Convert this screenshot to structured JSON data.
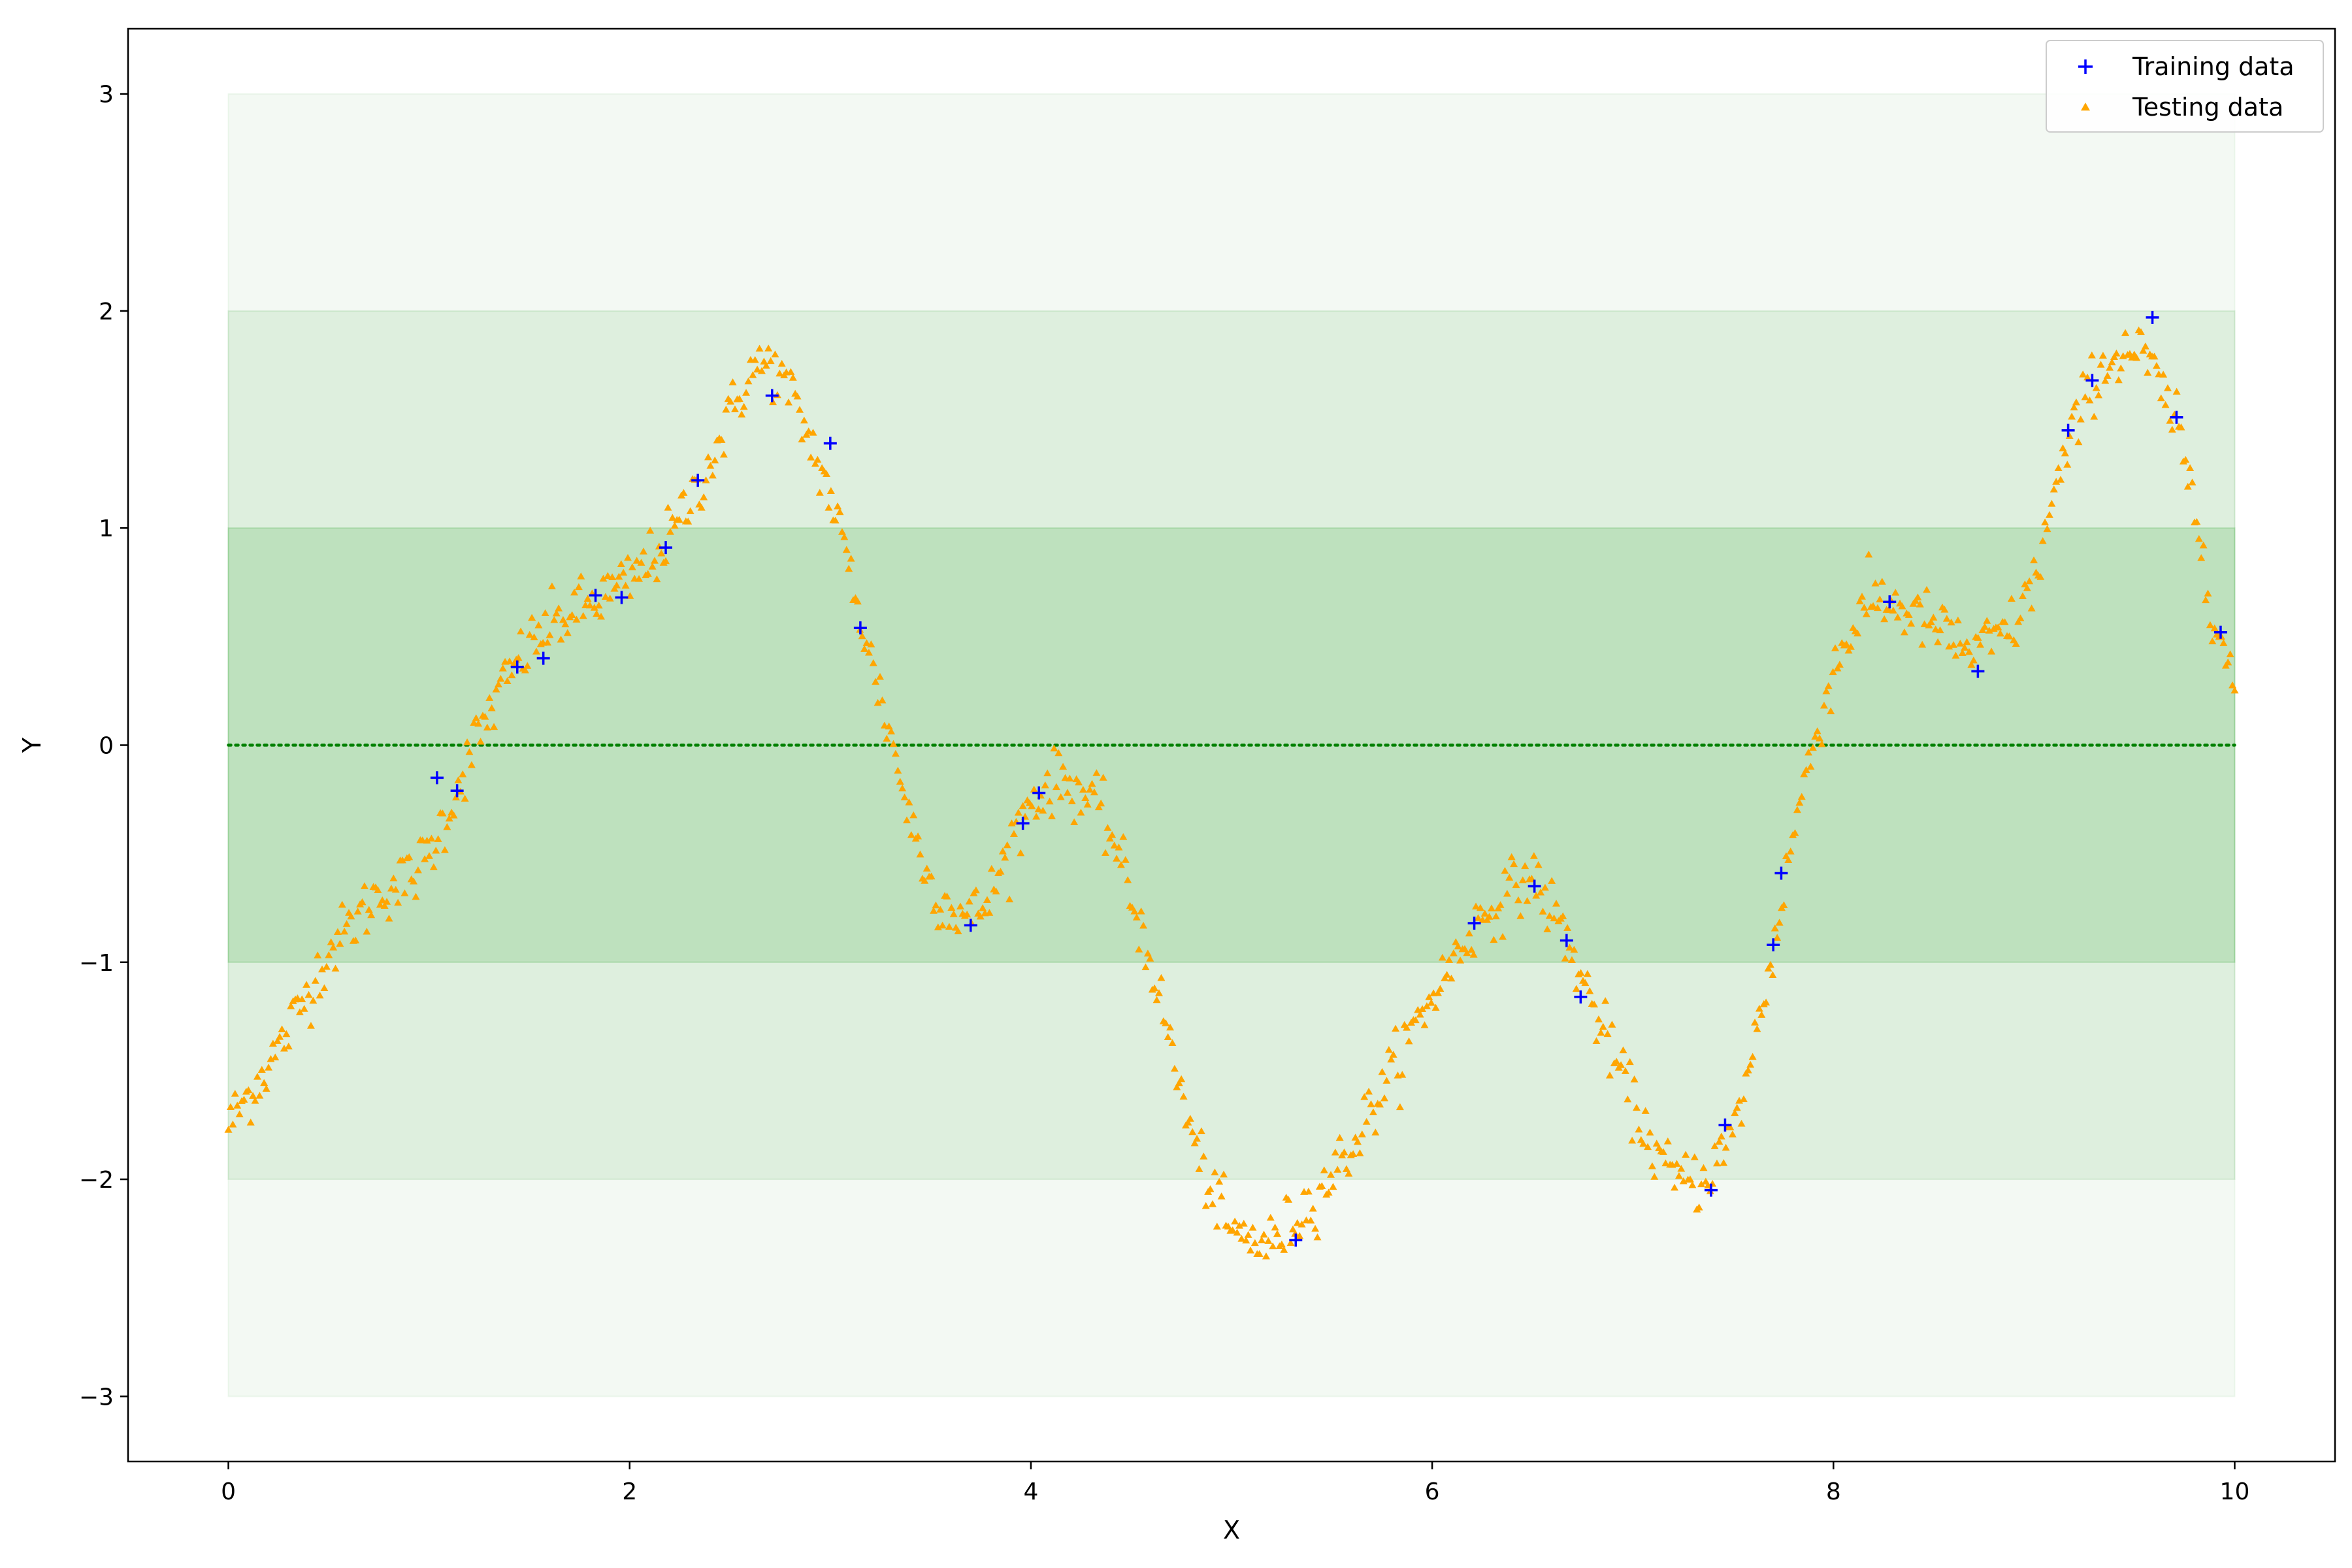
{
  "chart_data": {
    "type": "scatter",
    "xlabel": "X",
    "ylabel": "Y",
    "xlim": [
      -0.5,
      10.5
    ],
    "ylim": [
      -3.3,
      3.3
    ],
    "xticks": [
      0,
      2,
      4,
      6,
      8,
      10
    ],
    "yticks": [
      -3,
      -2,
      -1,
      0,
      1,
      2,
      3
    ],
    "xtick_labels": [
      "0",
      "2",
      "4",
      "6",
      "8",
      "10"
    ],
    "ytick_labels": [
      "−3",
      "−2",
      "−1",
      "0",
      "1",
      "2",
      "3"
    ],
    "grid": false,
    "legend": {
      "position": "top-right"
    },
    "mean_line": {
      "y": 0,
      "x_range": [
        0,
        10
      ],
      "style": "dotted",
      "color": "#008000"
    },
    "confidence_bands": [
      {
        "sigma": 3,
        "lower": -3,
        "upper": 3,
        "x_range": [
          0,
          10
        ],
        "color": "#2ca02c",
        "opacity": 0.06
      },
      {
        "sigma": 2,
        "lower": -2,
        "upper": 2,
        "x_range": [
          0,
          10
        ],
        "color": "#2ca02c",
        "opacity": 0.1
      },
      {
        "sigma": 1,
        "lower": -1,
        "upper": 1,
        "x_range": [
          0,
          10
        ],
        "color": "#2ca02c",
        "opacity": 0.18
      }
    ],
    "series": [
      {
        "name": "Training data",
        "marker": "plus",
        "color": "#0000ff",
        "points": [
          [
            1.04,
            -0.15
          ],
          [
            1.14,
            -0.21
          ],
          [
            1.44,
            0.36
          ],
          [
            1.57,
            0.4
          ],
          [
            1.83,
            0.69
          ],
          [
            1.96,
            0.68
          ],
          [
            2.18,
            0.91
          ],
          [
            2.34,
            1.22
          ],
          [
            2.71,
            1.61
          ],
          [
            3.0,
            1.39
          ],
          [
            3.15,
            0.54
          ],
          [
            3.7,
            -0.83
          ],
          [
            3.96,
            -0.36
          ],
          [
            4.04,
            -0.22
          ],
          [
            5.32,
            -2.28
          ],
          [
            6.21,
            -0.82
          ],
          [
            6.51,
            -0.65
          ],
          [
            6.67,
            -0.9
          ],
          [
            6.74,
            -1.16
          ],
          [
            7.39,
            -2.05
          ],
          [
            7.46,
            -1.75
          ],
          [
            7.7,
            -0.92
          ],
          [
            7.74,
            -0.59
          ],
          [
            8.28,
            0.66
          ],
          [
            8.72,
            0.34
          ],
          [
            9.17,
            1.45
          ],
          [
            9.29,
            1.68
          ],
          [
            9.59,
            1.97
          ],
          [
            9.71,
            1.51
          ],
          [
            9.93,
            0.52
          ]
        ]
      },
      {
        "name": "Testing data",
        "marker": "triangle",
        "color": "#ffa500",
        "curve": [
          [
            0.0,
            -1.75
          ],
          [
            0.25,
            -1.4
          ],
          [
            0.5,
            -0.95
          ],
          [
            0.75,
            -0.68
          ],
          [
            0.9,
            -0.62
          ],
          [
            1.0,
            -0.5
          ],
          [
            1.1,
            -0.3
          ],
          [
            1.2,
            -0.05
          ],
          [
            1.3,
            0.15
          ],
          [
            1.45,
            0.4
          ],
          [
            1.6,
            0.55
          ],
          [
            1.8,
            0.65
          ],
          [
            2.0,
            0.75
          ],
          [
            2.2,
            0.95
          ],
          [
            2.4,
            1.3
          ],
          [
            2.6,
            1.72
          ],
          [
            2.7,
            1.76
          ],
          [
            2.8,
            1.62
          ],
          [
            2.9,
            1.4
          ],
          [
            3.0,
            1.15
          ],
          [
            3.1,
            0.8
          ],
          [
            3.2,
            0.4
          ],
          [
            3.3,
            0.05
          ],
          [
            3.4,
            -0.35
          ],
          [
            3.5,
            -0.65
          ],
          [
            3.6,
            -0.75
          ],
          [
            3.7,
            -0.8
          ],
          [
            3.8,
            -0.7
          ],
          [
            3.9,
            -0.45
          ],
          [
            4.0,
            -0.25
          ],
          [
            4.15,
            -0.15
          ],
          [
            4.3,
            -0.25
          ],
          [
            4.4,
            -0.4
          ],
          [
            4.5,
            -0.7
          ],
          [
            4.6,
            -1.0
          ],
          [
            4.7,
            -1.4
          ],
          [
            4.8,
            -1.8
          ],
          [
            4.9,
            -2.05
          ],
          [
            5.0,
            -2.25
          ],
          [
            5.2,
            -2.3
          ],
          [
            5.4,
            -2.1
          ],
          [
            5.6,
            -1.85
          ],
          [
            5.8,
            -1.5
          ],
          [
            6.0,
            -1.15
          ],
          [
            6.2,
            -0.85
          ],
          [
            6.35,
            -0.7
          ],
          [
            6.5,
            -0.6
          ],
          [
            6.65,
            -0.85
          ],
          [
            6.8,
            -1.2
          ],
          [
            7.0,
            -1.65
          ],
          [
            7.1,
            -1.85
          ],
          [
            7.2,
            -2.0
          ],
          [
            7.35,
            -2.0
          ],
          [
            7.5,
            -1.8
          ],
          [
            7.6,
            -1.4
          ],
          [
            7.7,
            -0.95
          ],
          [
            7.8,
            -0.4
          ],
          [
            7.9,
            0.0
          ],
          [
            8.0,
            0.35
          ],
          [
            8.1,
            0.55
          ],
          [
            8.2,
            0.68
          ],
          [
            8.3,
            0.65
          ],
          [
            8.5,
            0.55
          ],
          [
            8.7,
            0.42
          ],
          [
            8.9,
            0.55
          ],
          [
            9.0,
            0.75
          ],
          [
            9.1,
            1.15
          ],
          [
            9.2,
            1.45
          ],
          [
            9.3,
            1.7
          ],
          [
            9.45,
            1.82
          ],
          [
            9.55,
            1.8
          ],
          [
            9.7,
            1.5
          ],
          [
            9.8,
            1.1
          ],
          [
            9.9,
            0.6
          ],
          [
            10.0,
            0.25
          ]
        ]
      }
    ]
  }
}
